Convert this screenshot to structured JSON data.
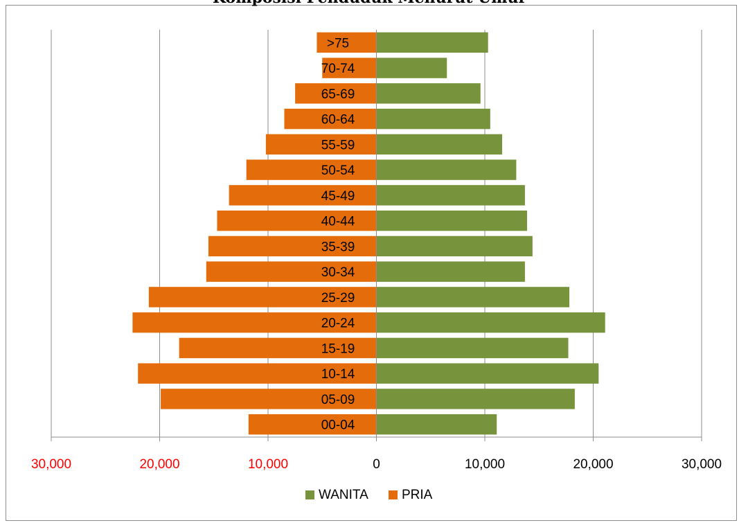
{
  "chart_data": {
    "type": "bar",
    "title": "Komposisi Penduduk Menurut Umur",
    "orientation": "horizontal",
    "categories": [
      "00-04",
      "05-09",
      "10-14",
      "15-19",
      "20-24",
      "25-29",
      "30-34",
      "35-39",
      "40-44",
      "45-49",
      "50-54",
      "55-59",
      "60-64",
      "65-69",
      "70-74",
      ">75"
    ],
    "series": [
      {
        "name": "WANITA",
        "color": "#77933c",
        "side": "right",
        "values": [
          11100,
          18300,
          20500,
          17700,
          21100,
          17800,
          13700,
          14400,
          13900,
          13700,
          12900,
          11600,
          10500,
          9600,
          6500,
          10300
        ]
      },
      {
        "name": "PRIA",
        "color": "#e46c0a",
        "side": "left",
        "values": [
          11800,
          19900,
          22000,
          18200,
          22500,
          21000,
          15700,
          15500,
          14700,
          13600,
          12000,
          10200,
          8500,
          7500,
          5000,
          5500
        ]
      }
    ],
    "xlim": [
      -30000,
      30000
    ],
    "x_ticks": [
      {
        "value": -30000,
        "label": "30,000",
        "color": "#ff0000"
      },
      {
        "value": -20000,
        "label": "20,000",
        "color": "#ff0000"
      },
      {
        "value": -10000,
        "label": "10,000",
        "color": "#ff0000"
      },
      {
        "value": 0,
        "label": "0",
        "color": "#000000"
      },
      {
        "value": 10000,
        "label": "10,000",
        "color": "#000000"
      },
      {
        "value": 20000,
        "label": "20,000",
        "color": "#000000"
      },
      {
        "value": 30000,
        "label": "30,000",
        "color": "#000000"
      }
    ],
    "grid": true,
    "legend_position": "bottom"
  }
}
